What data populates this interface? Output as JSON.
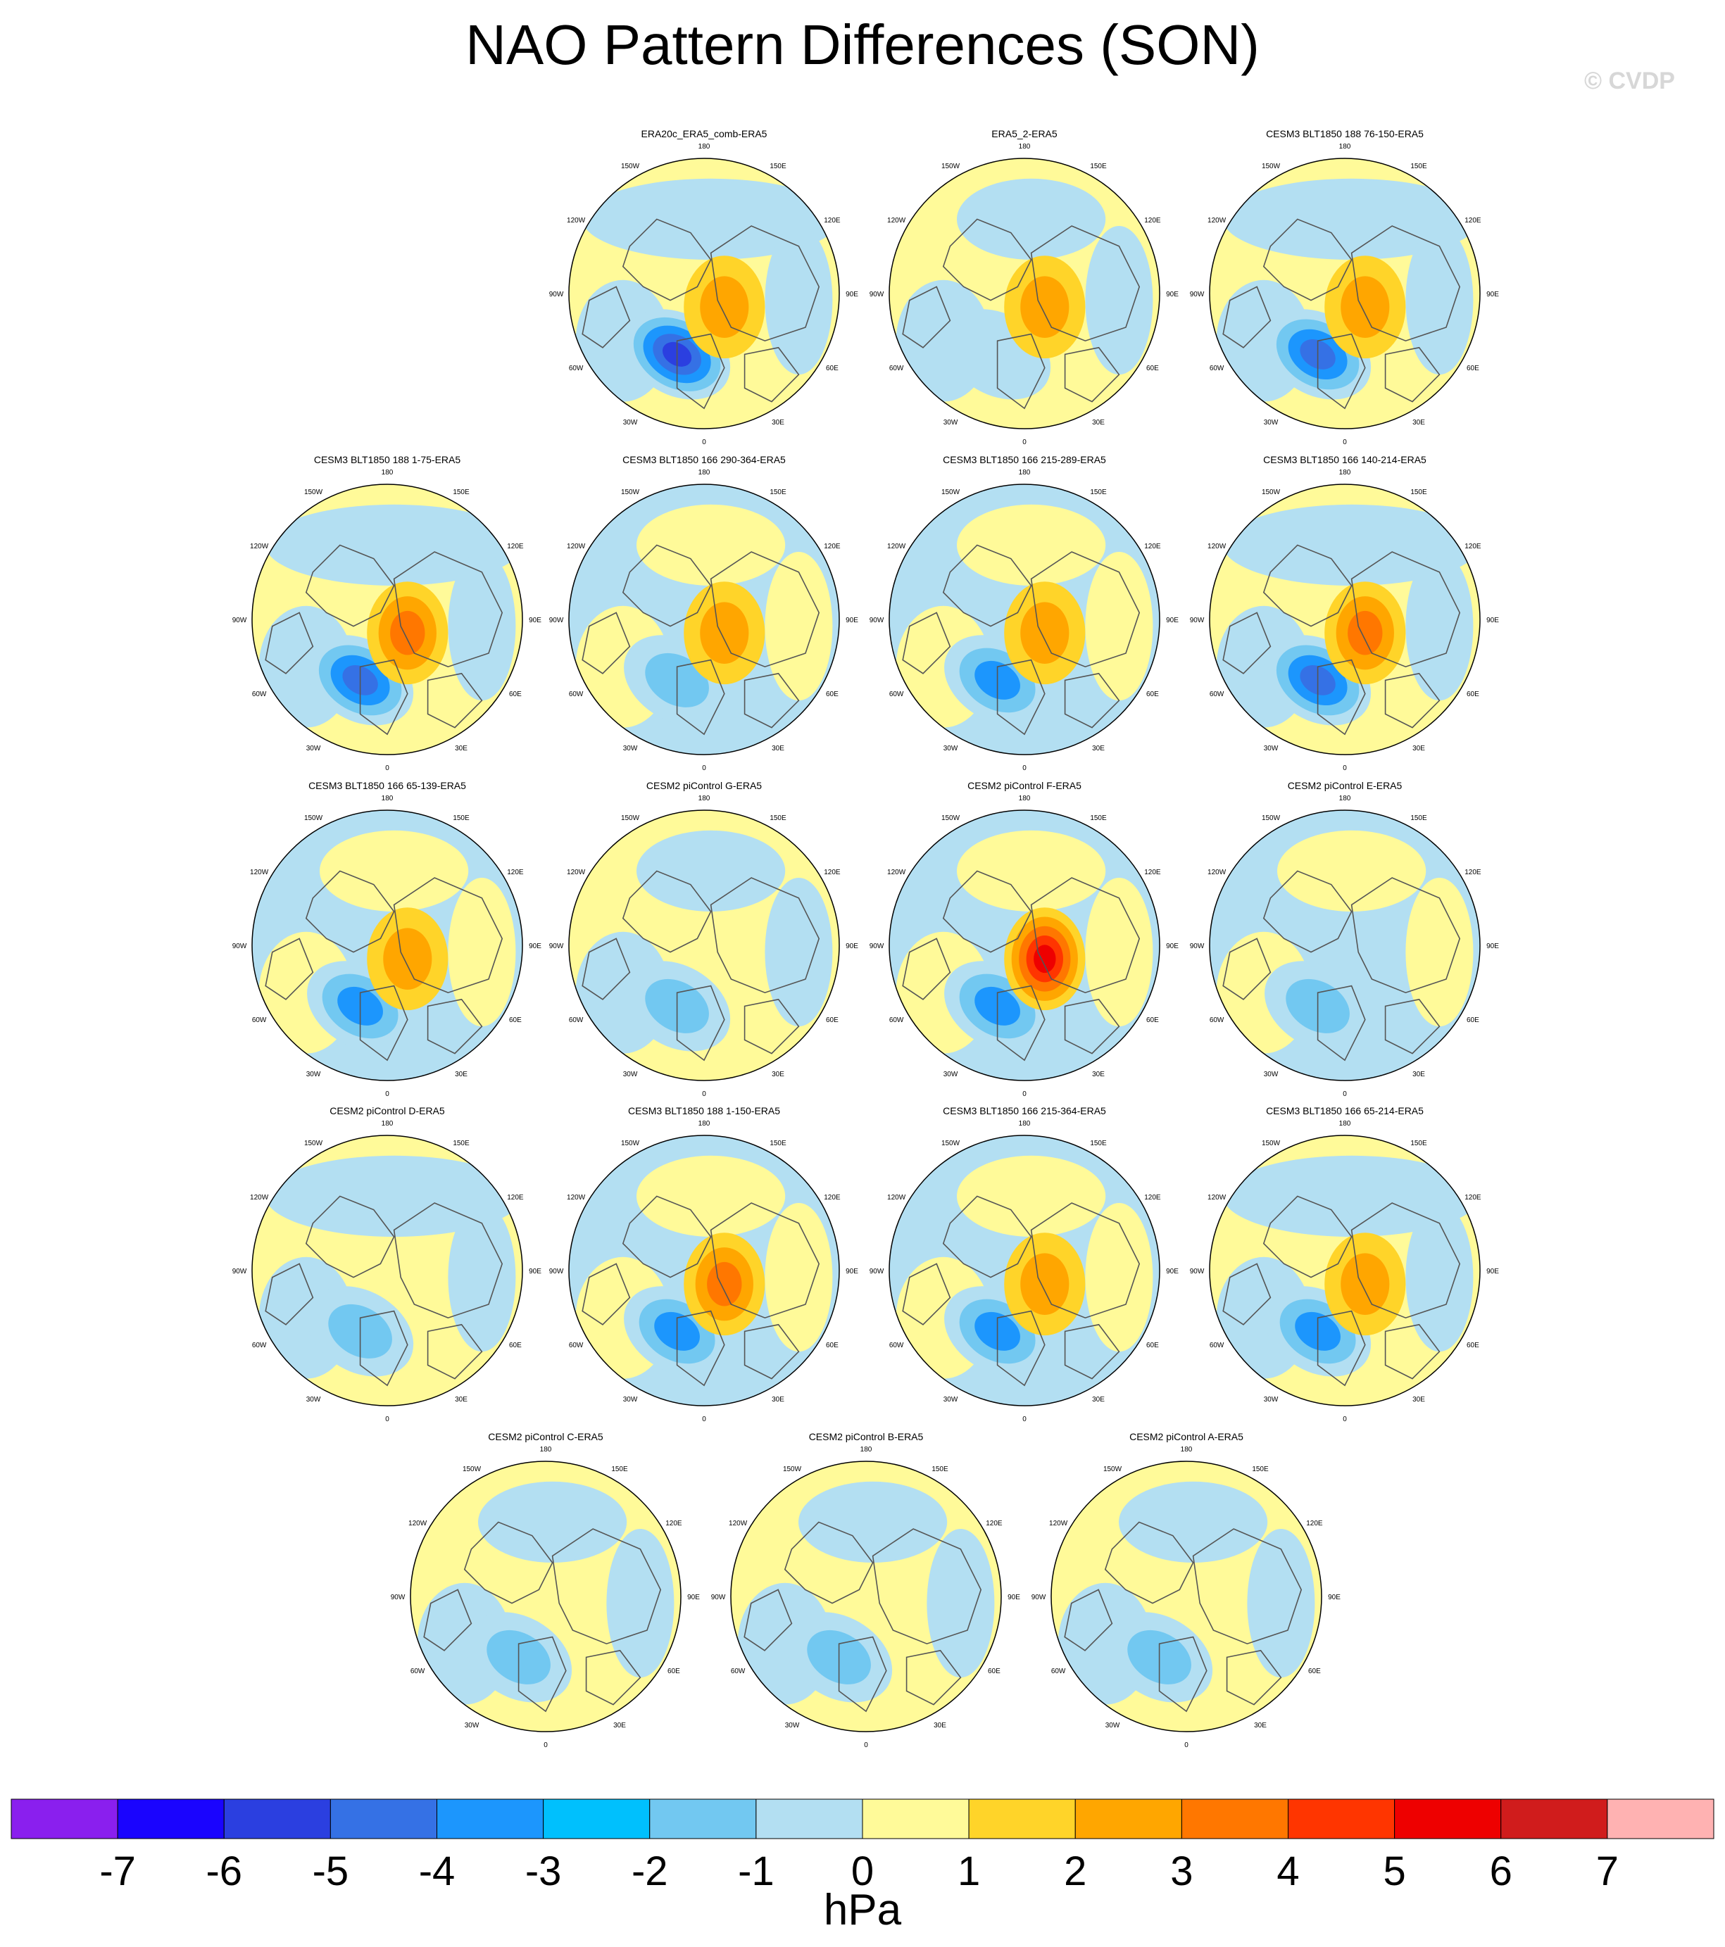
{
  "title": "NAO Pattern Differences (SON)",
  "watermark": "© CVDP",
  "lon_labels": {
    "top": "180",
    "ul": "150W",
    "ur": "150E",
    "ul2": "120W",
    "ur2": "120E",
    "left": "90W",
    "right": "90E",
    "ll2": "60W",
    "lr2": "60E",
    "ll": "30W",
    "lr": "30E",
    "bottom": "0"
  },
  "panels": [
    {
      "title": "ERA20c_ERA5_comb-ERA5",
      "neg": -5,
      "pos": 2,
      "bg": "mixed"
    },
    {
      "title": "ERA5_2-ERA5",
      "neg": -1,
      "pos": 2,
      "bg": "yellow"
    },
    {
      "title": "CESM3 BLT1850 188 76-150-ERA5",
      "neg": -4,
      "pos": 2,
      "bg": "mixed"
    },
    {
      "title": "CESM3 BLT1850 188 1-75-ERA5",
      "neg": -4,
      "pos": 3,
      "bg": "mixed"
    },
    {
      "title": "CESM3 BLT1850 166 290-364-ERA5",
      "neg": -2,
      "pos": 2,
      "bg": "blue"
    },
    {
      "title": "CESM3 BLT1850 166 215-289-ERA5",
      "neg": -3,
      "pos": 2,
      "bg": "blue"
    },
    {
      "title": "CESM3 BLT1850 166 140-214-ERA5",
      "neg": -4,
      "pos": 3,
      "bg": "mixed"
    },
    {
      "title": "CESM3 BLT1850 166 65-139-ERA5",
      "neg": -3,
      "pos": 2,
      "bg": "blue"
    },
    {
      "title": "CESM2 piControl G-ERA5",
      "neg": -2,
      "pos": 0,
      "bg": "yellow"
    },
    {
      "title": "CESM2 piControl F-ERA5",
      "neg": -3,
      "pos": 5,
      "bg": "blue"
    },
    {
      "title": "CESM2 piControl E-ERA5",
      "neg": -2,
      "pos": 0,
      "bg": "blue"
    },
    {
      "title": "CESM2 piControl D-ERA5",
      "neg": -2,
      "pos": 0,
      "bg": "mixed"
    },
    {
      "title": "CESM3 BLT1850 188 1-150-ERA5",
      "neg": -3,
      "pos": 3,
      "bg": "blue"
    },
    {
      "title": "CESM3 BLT1850 166 215-364-ERA5",
      "neg": -3,
      "pos": 2,
      "bg": "blue"
    },
    {
      "title": "CESM3 BLT1850 166 65-214-ERA5",
      "neg": -3,
      "pos": 2,
      "bg": "mixed"
    },
    {
      "title": "CESM2 piControl C-ERA5",
      "neg": -2,
      "pos": 0,
      "bg": "yellow"
    },
    {
      "title": "CESM2 piControl B-ERA5",
      "neg": -2,
      "pos": 0,
      "bg": "yellow"
    },
    {
      "title": "CESM2 piControl A-ERA5",
      "neg": -2,
      "pos": 0,
      "bg": "yellow"
    }
  ],
  "colorbar": {
    "unit": "hPa",
    "tick_labels": [
      "-7",
      "-6",
      "-5",
      "-4",
      "-3",
      "-2",
      "-1",
      "0",
      "1",
      "2",
      "3",
      "4",
      "5",
      "6",
      "7"
    ],
    "colors": [
      "#8a1fee",
      "#1a04fe",
      "#2b3fe0",
      "#3571e5",
      "#1c96fd",
      "#00c0fd",
      "#72c8f1",
      "#b3dff2",
      "#fffa99",
      "#ffd429",
      "#ffa600",
      "#ff7700",
      "#ff3500",
      "#ee0000",
      "#d01c1c",
      "#ffb2b2"
    ],
    "level_colors": {
      "-5": "#2b3fe0",
      "-4": "#3571e5",
      "-3": "#1c96fd",
      "-2": "#72c8f1",
      "-1": "#b3dff2",
      "0": "#fffa99",
      "1": "#ffd429",
      "2": "#ffa600",
      "3": "#ff7700",
      "4": "#ff3500",
      "5": "#ee0000"
    }
  }
}
